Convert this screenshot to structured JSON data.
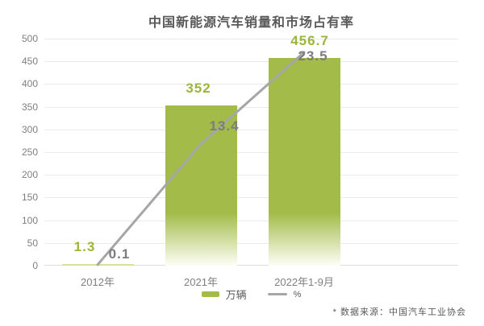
{
  "title": "中国新能源汽车销量和市场占有率",
  "source_note": "* 数据来源：中国汽车工业协会",
  "chart_data": {
    "type": "combo-bar-line",
    "categories": [
      "2012年",
      "2021年",
      "2022年1-9月"
    ],
    "series": [
      {
        "name": "万辆",
        "type": "bar",
        "axis": "left",
        "values": [
          1.3,
          352,
          456.7
        ]
      },
      {
        "name": "%",
        "type": "line",
        "axis": "right",
        "values": [
          0.1,
          13.4,
          23.5
        ]
      }
    ],
    "left_axis": {
      "min": 0,
      "max": 500,
      "tick_step": 50,
      "ticks": [
        0,
        50,
        100,
        150,
        200,
        250,
        300,
        350,
        400,
        450,
        500
      ]
    },
    "right_axis": {
      "min": 0,
      "max": 25,
      "visible": false
    },
    "grid": true,
    "legend_position": "bottom",
    "data_labels": true
  },
  "colors": {
    "bar_green": "#a3bc49",
    "bar_fade": "#fdfef6",
    "bar_tiny": "#d4e29e",
    "label_green": "#9cb53c",
    "line_gray": "#a6a6a6",
    "pct_label_gray": "#7c7c7c",
    "grid_line": "#e9e9e7",
    "axis_text": "#7f7f7f",
    "title_text": "#595959"
  }
}
